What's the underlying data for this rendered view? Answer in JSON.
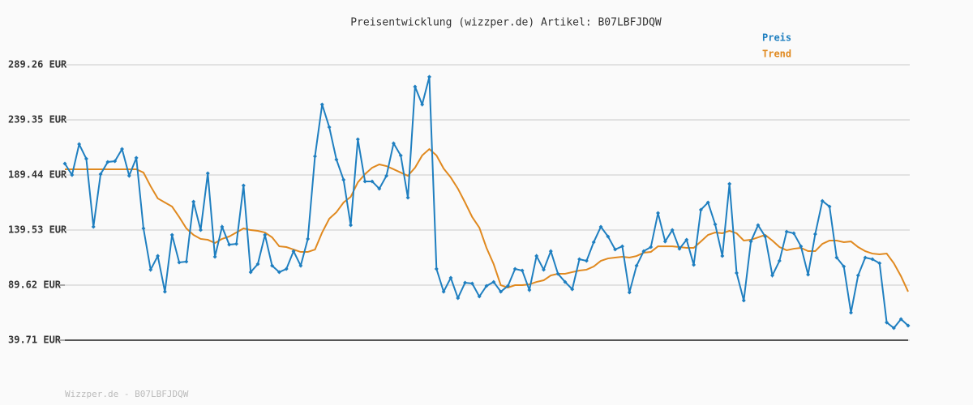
{
  "chart_data": {
    "type": "line",
    "title": "Preisentwicklung (wizzper.de) Artikel: B07LBFJDQW",
    "footer": "Wizzper.de - B07LBFJDQW",
    "ylim": [
      39.71,
      289.26
    ],
    "yticks": [
      {
        "value": 39.71,
        "label": "39.71 EUR"
      },
      {
        "value": 89.62,
        "label": "89.62 EUR"
      },
      {
        "value": 139.53,
        "label": "139.53 EUR"
      },
      {
        "value": 189.44,
        "label": "189.44 EUR"
      },
      {
        "value": 239.35,
        "label": "239.35 EUR"
      },
      {
        "value": 289.26,
        "label": "289.26 EUR"
      }
    ],
    "grid": true,
    "legend": "top-right",
    "series": [
      {
        "name": "Preis",
        "color": "#1f7fc0",
        "markers": true,
        "values": [
          199.7,
          189.4,
          217.3,
          204.1,
          142.5,
          190.2,
          201.2,
          201.9,
          212.9,
          188.7,
          204.9,
          141.0,
          103.6,
          116.0,
          83.7,
          135.1,
          110.2,
          110.9,
          165.2,
          139.5,
          190.9,
          115.3,
          142.5,
          126.3,
          127.0,
          179.9,
          101.4,
          108.7,
          135.1,
          107.2,
          101.4,
          104.3,
          120.4,
          107.2,
          131.5,
          206.3,
          253.3,
          232.7,
          203.4,
          185.0,
          143.9,
          221.7,
          183.6,
          183.6,
          177.0,
          188.7,
          218.1,
          207.1,
          168.9,
          269.4,
          253.3,
          278.3,
          104.3,
          83.7,
          96.2,
          77.9,
          91.8,
          91.1,
          79.3,
          88.9,
          92.5,
          83.7,
          88.9,
          104.3,
          102.8,
          85.2,
          116.0,
          103.6,
          120.4,
          99.9,
          92.5,
          85.9,
          113.1,
          111.6,
          128.5,
          142.5,
          133.7,
          121.9,
          124.8,
          83.0,
          107.2,
          120.4,
          124.1,
          154.9,
          129.2,
          139.5,
          122.6,
          130.7,
          108.0,
          157.9,
          164.5,
          144.7,
          116.0,
          181.4,
          100.6,
          75.7,
          129.2,
          143.9,
          133.7,
          98.4,
          111.6,
          138.1,
          136.6,
          124.8,
          99.2,
          135.9,
          165.9,
          160.8,
          114.6,
          106.5,
          64.7,
          98.4,
          114.6,
          113.1,
          109.4,
          55.8,
          50.7,
          58.8,
          52.9
        ]
      },
      {
        "name": "Trend",
        "color": "#e0891f",
        "markers": false,
        "values": [
          194.6,
          194.6,
          194.6,
          194.6,
          194.6,
          194.6,
          194.6,
          194.6,
          194.6,
          194.6,
          194.6,
          191.6,
          179.2,
          168.2,
          164.5,
          160.8,
          151.3,
          141.0,
          135.1,
          131.5,
          130.7,
          127.8,
          131.5,
          133.7,
          137.3,
          141.0,
          139.5,
          138.8,
          137.3,
          132.9,
          124.8,
          124.1,
          121.9,
          119.7,
          119.7,
          121.9,
          137.3,
          149.8,
          155.7,
          164.5,
          169.6,
          182.8,
          190.2,
          196.0,
          199.0,
          197.5,
          194.6,
          191.6,
          188.7,
          196.0,
          207.1,
          212.9,
          207.1,
          195.3,
          187.2,
          177.0,
          164.5,
          151.3,
          141.7,
          123.4,
          108.7,
          89.6,
          87.4,
          89.6,
          89.6,
          90.3,
          92.5,
          94.0,
          98.4,
          99.9,
          99.9,
          101.4,
          102.8,
          103.6,
          106.5,
          111.6,
          113.8,
          114.6,
          115.3,
          114.6,
          116.0,
          119.0,
          119.7,
          124.8,
          124.8,
          124.8,
          124.1,
          123.4,
          123.4,
          129.2,
          135.1,
          137.3,
          136.6,
          138.8,
          136.6,
          130.0,
          130.7,
          132.9,
          135.1,
          130.0,
          124.1,
          121.2,
          122.6,
          123.4,
          120.4,
          120.4,
          127.0,
          130.0,
          130.0,
          128.5,
          129.2,
          124.1,
          120.4,
          118.2,
          117.5,
          118.2,
          109.4,
          97.7,
          83.7
        ]
      }
    ]
  }
}
